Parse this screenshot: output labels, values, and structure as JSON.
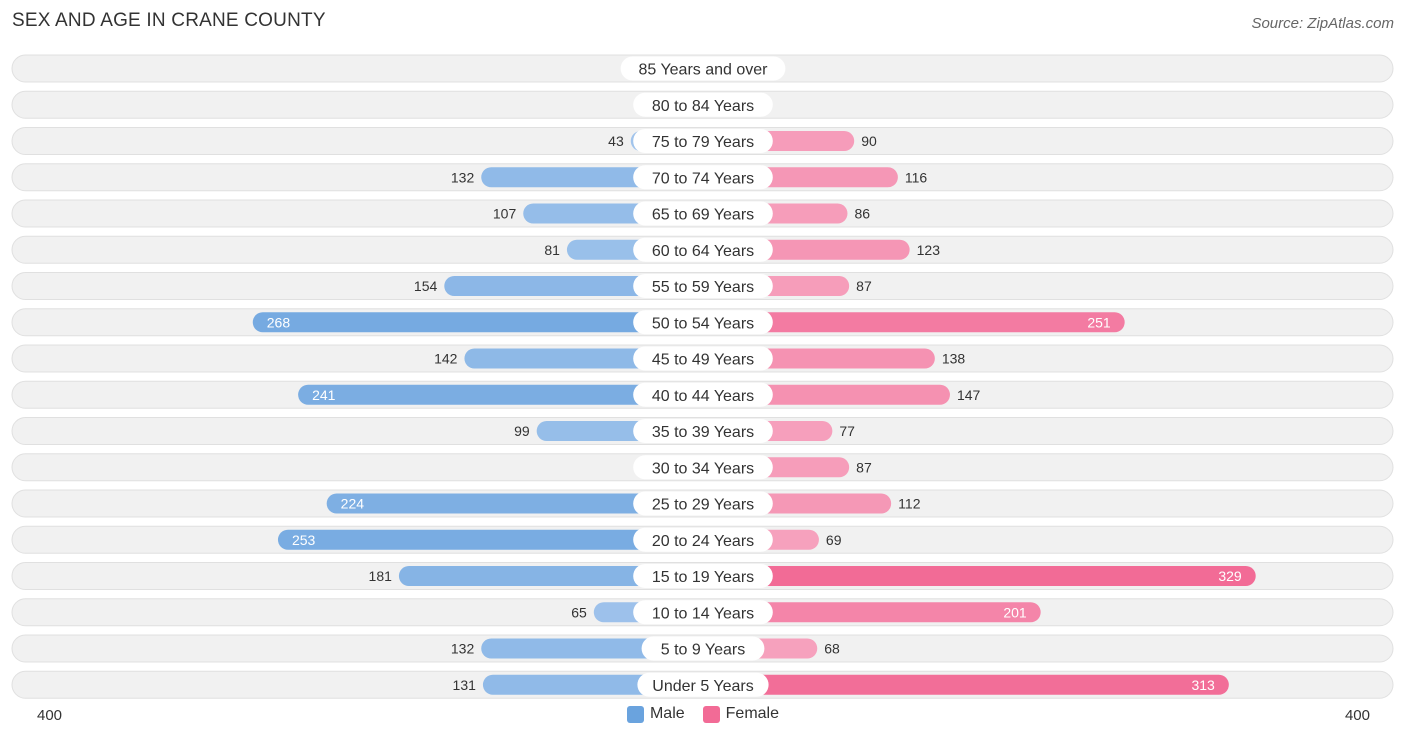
{
  "title": "SEX AND AGE IN CRANE COUNTY",
  "source": "Source: ZipAtlas.com",
  "chart_data": {
    "type": "bar",
    "orientation": "horizontal-diverging",
    "categories": [
      "85 Years and over",
      "80 to 84 Years",
      "75 to 79 Years",
      "70 to 74 Years",
      "65 to 69 Years",
      "60 to 64 Years",
      "55 to 59 Years",
      "50 to 54 Years",
      "45 to 49 Years",
      "40 to 44 Years",
      "35 to 39 Years",
      "30 to 34 Years",
      "25 to 29 Years",
      "20 to 24 Years",
      "15 to 19 Years",
      "10 to 14 Years",
      "5 to 9 Years",
      "Under 5 Years"
    ],
    "series": [
      {
        "name": "Male",
        "values": [
          9,
          18,
          43,
          132,
          107,
          81,
          154,
          268,
          142,
          241,
          99,
          13,
          224,
          253,
          181,
          65,
          132,
          131
        ]
      },
      {
        "name": "Female",
        "values": [
          22,
          27,
          90,
          116,
          86,
          123,
          87,
          251,
          138,
          147,
          77,
          87,
          112,
          69,
          329,
          201,
          68,
          313
        ]
      }
    ],
    "xlim": [
      -400,
      400
    ],
    "axis_labels": {
      "left": "400",
      "right": "400"
    },
    "legend": {
      "position": "bottom-center"
    },
    "colors": {
      "male_light": "#a9c9ee",
      "male_dark": "#6aa3de",
      "female_light": "#f7afc7",
      "female_dark": "#f26b96",
      "row_bg": "#f1f1f1",
      "row_border": "#e0e0e0"
    }
  }
}
